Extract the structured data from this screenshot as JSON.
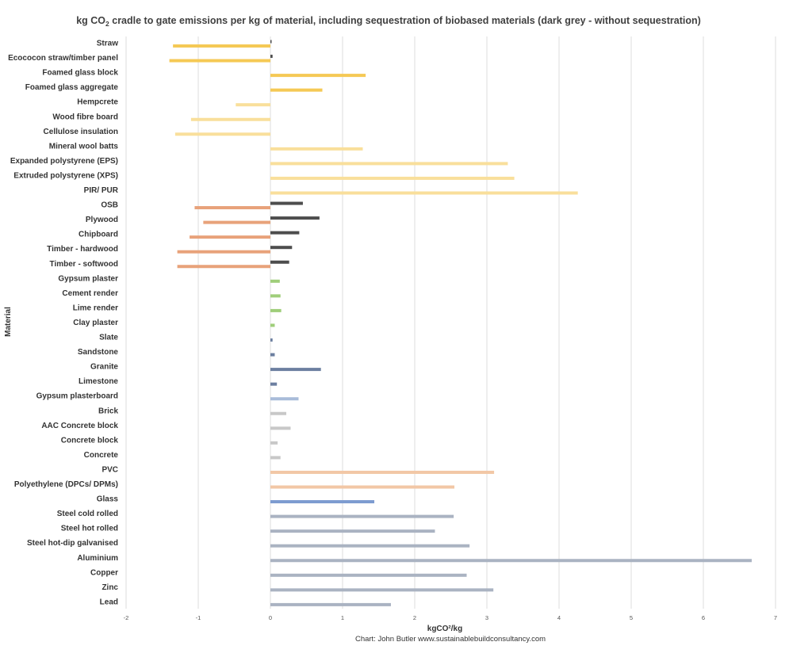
{
  "chart_data": {
    "type": "bar",
    "orientation": "horizontal",
    "title_main": "kg CO",
    "title_sub": "2",
    "title_rest": " cradle to gate emissions per kg of material, including sequestration of biobased materials (dark grey - without sequestration)",
    "xlabel": "kgCO²/kg",
    "ylabel": "Material",
    "credit": "Chart: John Butler www.sustainablebuildconsultancy.com",
    "xlim": [
      -2,
      7
    ],
    "xticks": [
      "-2",
      "-1",
      "0",
      "1",
      "2",
      "3",
      "4",
      "5",
      "6",
      "7"
    ],
    "grid": "vertical",
    "legend": "none",
    "categories": [
      "Straw",
      "Ecococon straw/timber panel",
      "Foamed glass block",
      "Foamed glass aggregate",
      "Hempcrete",
      "Wood fibre board",
      "Cellulose insulation",
      "Mineral wool batts",
      "Expanded polystyrene (EPS)",
      "Extruded polystyrene (XPS)",
      "PIR/ PUR",
      "OSB",
      "Plywood",
      "Chipboard",
      "Timber - hardwood",
      "Timber - softwood",
      "Gypsum plaster",
      "Cement render",
      "Lime render",
      "Clay plaster",
      "Slate",
      "Sandstone",
      "Granite",
      "Limestone",
      "Gypsum plasterboard",
      "Brick",
      "AAC Concrete block",
      "Concrete block",
      "Concrete",
      "PVC",
      "Polyethylene (DPCs/ DPMs)",
      "Glass",
      "Steel cold rolled",
      "Steel hot rolled",
      "Steel hot-dip galvanised",
      "Aluminium",
      "Copper",
      "Zinc",
      "Lead"
    ],
    "series": [
      {
        "values": [
          -1.35,
          -1.4,
          1.32,
          0.72,
          -0.48,
          -1.1,
          -1.32,
          1.28,
          3.29,
          3.38,
          4.26,
          -1.05,
          -0.93,
          -1.12,
          -1.29,
          -1.29,
          0.13,
          0.14,
          0.15,
          0.06,
          0.03,
          0.06,
          0.7,
          0.09,
          0.39,
          0.22,
          0.28,
          0.1,
          0.14,
          3.1,
          2.55,
          1.44,
          2.54,
          2.28,
          2.76,
          6.67,
          2.72,
          3.09,
          1.67
        ],
        "colors": [
          "#f5c955",
          "#f5c955",
          "#f5c955",
          "#f5c955",
          "#f9df9b",
          "#f9df9b",
          "#f9df9b",
          "#f9df9b",
          "#f9df9b",
          "#f9df9b",
          "#f9df9b",
          "#e8a27a",
          "#e8a27a",
          "#e8a27a",
          "#e8a27a",
          "#e8a27a",
          "#9fce7a",
          "#9fce7a",
          "#9fce7a",
          "#9fce7a",
          "#6c7fa0",
          "#6c7fa0",
          "#6c7fa0",
          "#6c7fa0",
          "#a9bcd9",
          "#c8c8c8",
          "#c8c8c8",
          "#c8c8c8",
          "#c8c8c8",
          "#f2c7a6",
          "#f2c7a6",
          "#7d9bd0",
          "#aab3c2",
          "#aab3c2",
          "#aab3c2",
          "#aab3c2",
          "#aab3c2",
          "#aab3c2",
          "#aab3c2"
        ]
      },
      {
        "values": [
          0.01,
          0.03,
          0,
          0,
          0,
          0,
          0,
          0,
          0,
          0,
          0,
          0.45,
          0.68,
          0.4,
          0.3,
          0.26,
          0,
          0,
          0,
          0,
          0,
          0,
          0,
          0,
          0,
          0,
          0,
          0,
          0,
          0,
          0,
          0,
          0,
          0,
          0,
          0,
          0,
          0,
          0
        ],
        "color": "#4d4d4d"
      }
    ]
  }
}
